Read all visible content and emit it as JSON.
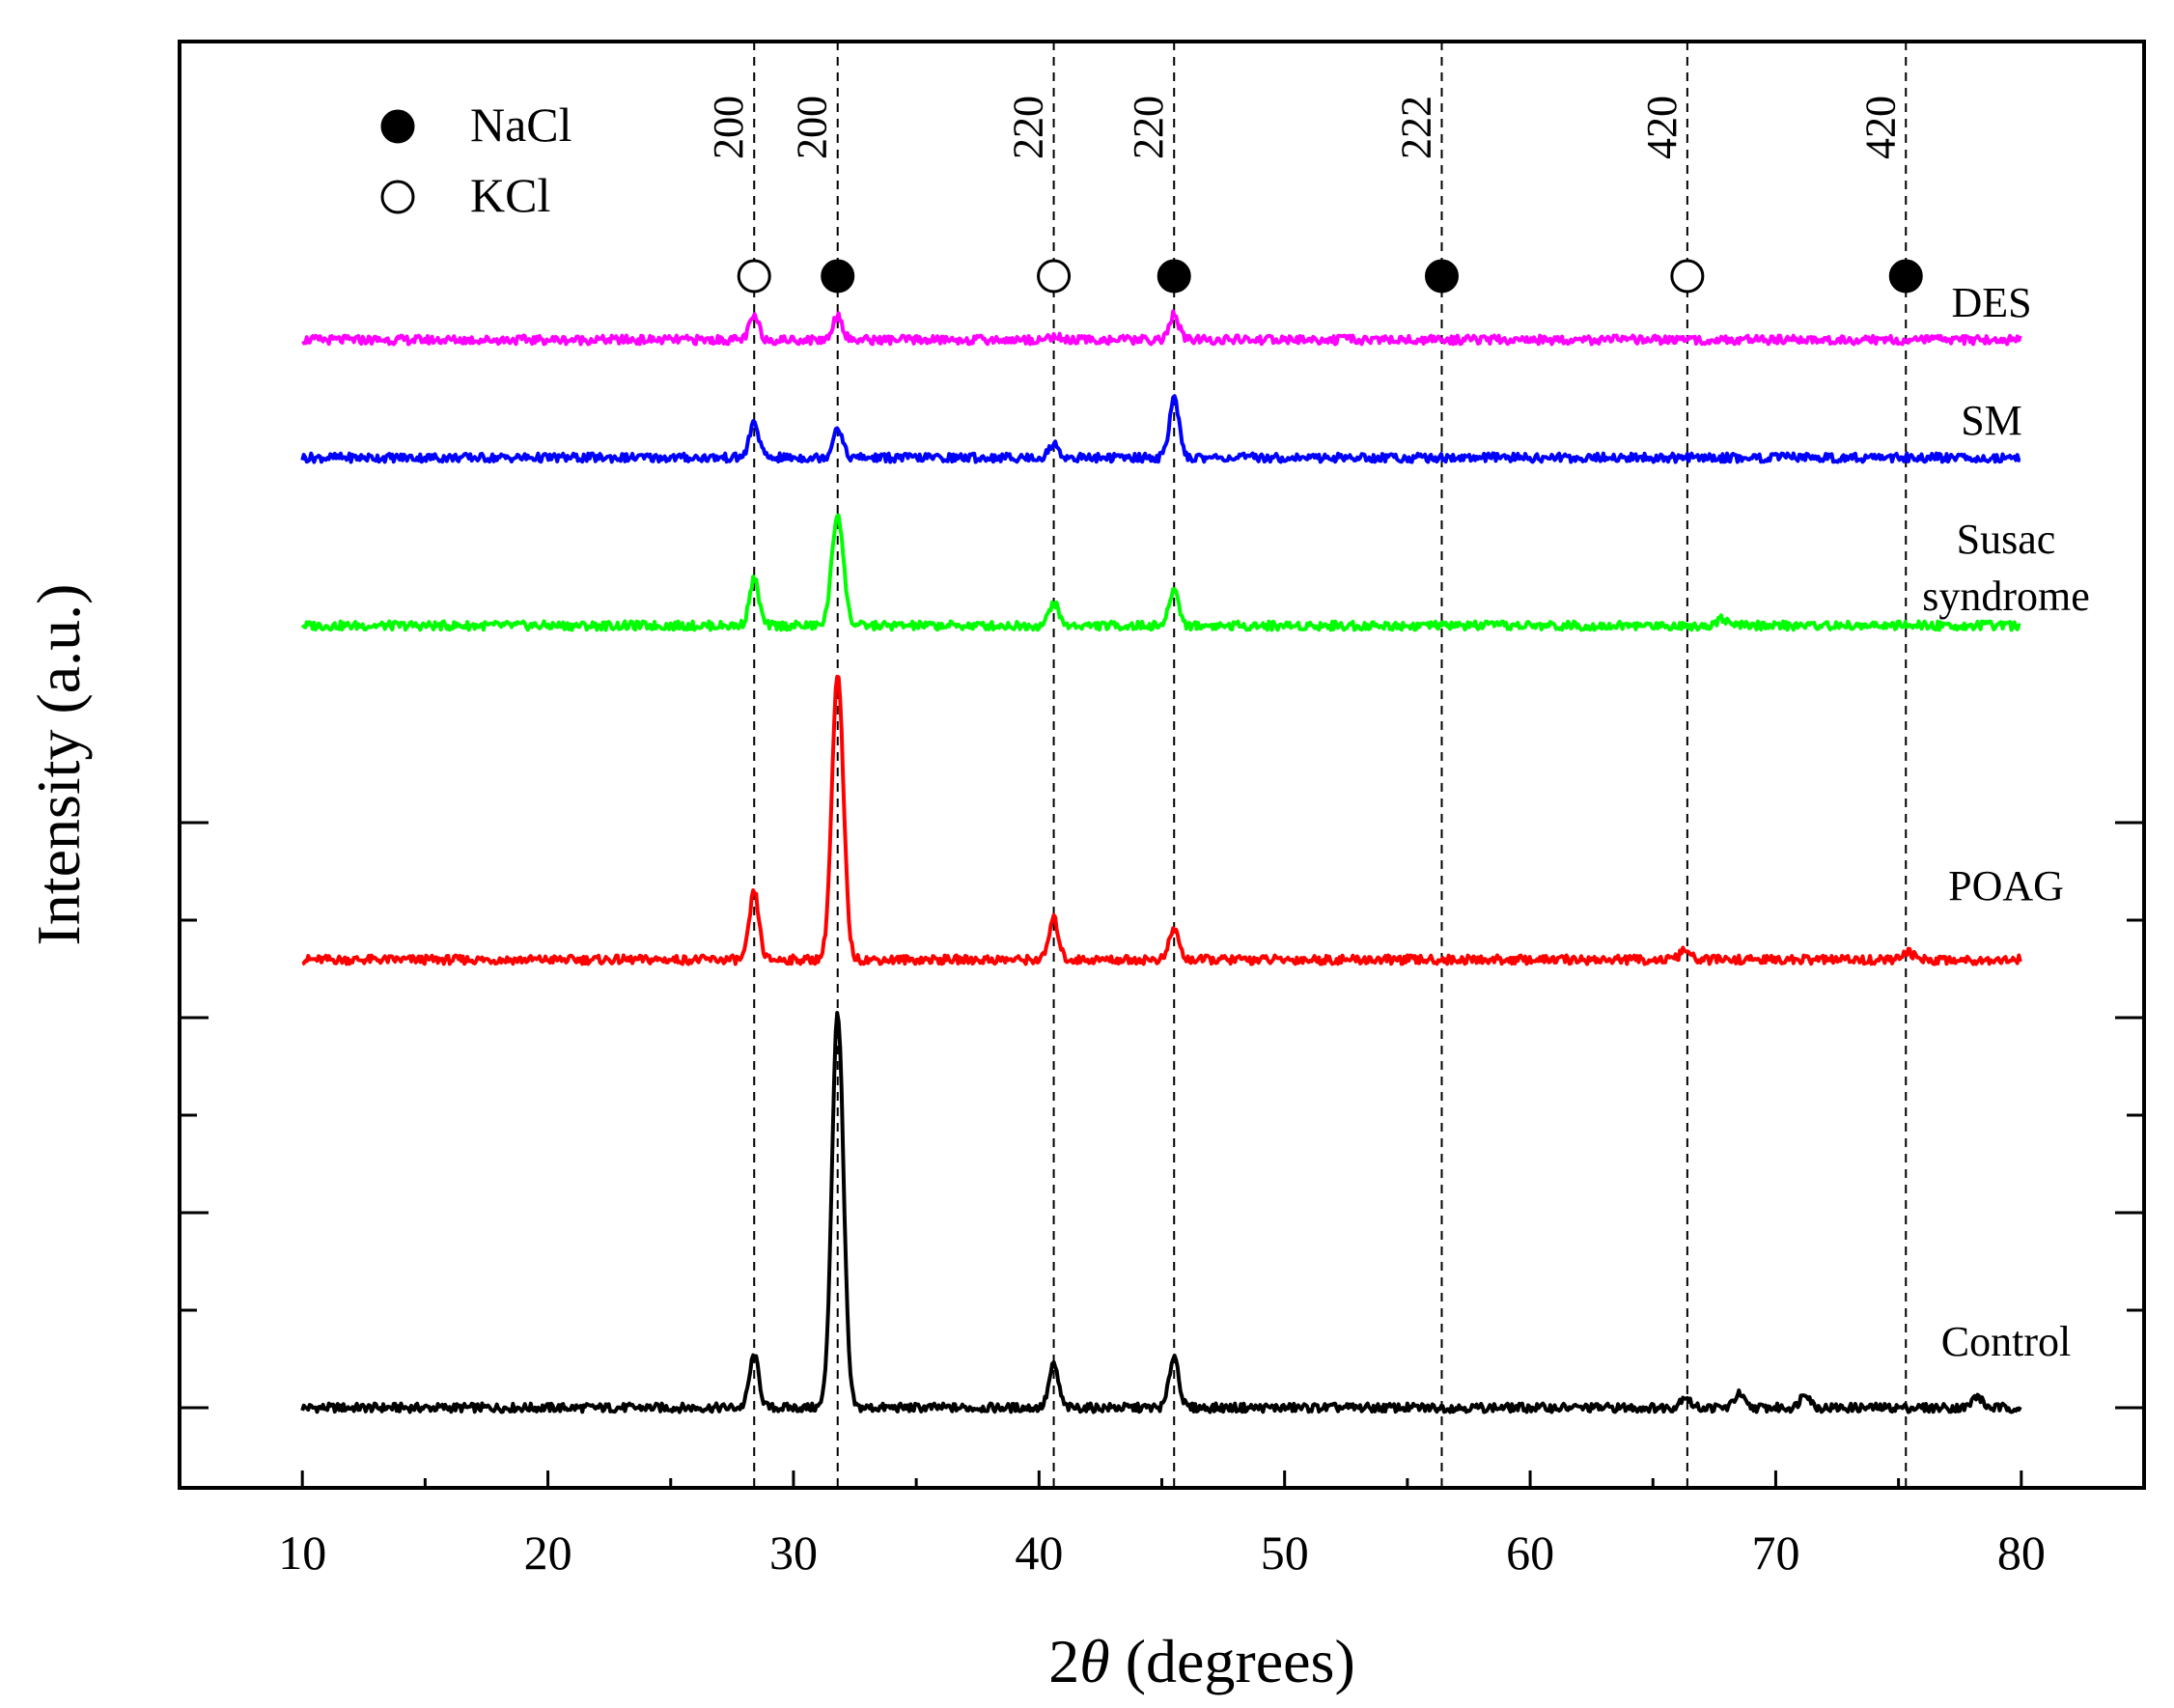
{
  "chart_data": {
    "type": "line",
    "title": "",
    "xlabel_prefix": "2",
    "xlabel_symbol": "θ",
    "xlabel_suffix": " (degrees)",
    "ylabel": "Intensity (a.u.)",
    "xlim": [
      5,
      85
    ],
    "xticks": [
      "10",
      "20",
      "30",
      "40",
      "50",
      "60",
      "70",
      "80"
    ],
    "legend": [
      {
        "label": "NaCl",
        "marker": "filled-circle"
      },
      {
        "label": "KCl",
        "marker": "open-circle"
      }
    ],
    "reference_lines": [
      {
        "x": 28.4,
        "label": "200",
        "phase": "KCl"
      },
      {
        "x": 31.8,
        "label": "200",
        "phase": "NaCl"
      },
      {
        "x": 40.6,
        "label": "220",
        "phase": "KCl"
      },
      {
        "x": 45.5,
        "label": "220",
        "phase": "NaCl"
      },
      {
        "x": 56.4,
        "label": "222",
        "phase": "NaCl"
      },
      {
        "x": 66.4,
        "label": "420",
        "phase": "KCl"
      },
      {
        "x": 75.3,
        "label": "420",
        "phase": "NaCl"
      }
    ],
    "series": [
      {
        "name": "Control",
        "color": "#000000",
        "baseline": 0,
        "peaks": [
          [
            28.4,
            27
          ],
          [
            31.8,
            205
          ],
          [
            40.6,
            22
          ],
          [
            45.5,
            27
          ],
          [
            66.3,
            6
          ],
          [
            68.5,
            7
          ],
          [
            71.2,
            8
          ],
          [
            78.2,
            6
          ]
        ]
      },
      {
        "name": "POAG",
        "color": "#ff0000",
        "baseline": 232,
        "peaks": [
          [
            28.4,
            35
          ],
          [
            31.8,
            147
          ],
          [
            40.6,
            21
          ],
          [
            45.5,
            16
          ],
          [
            66.3,
            5
          ],
          [
            75.4,
            4
          ]
        ]
      },
      {
        "name": "Susac syndrome",
        "color": "#00ff00",
        "baseline": 405,
        "peaks": [
          [
            28.4,
            24
          ],
          [
            31.8,
            58
          ],
          [
            40.6,
            12
          ],
          [
            45.5,
            19
          ],
          [
            67.8,
            4
          ]
        ]
      },
      {
        "name": "SM",
        "color": "#0000ff",
        "baseline": 492,
        "peaks": [
          [
            28.4,
            18
          ],
          [
            31.8,
            16
          ],
          [
            40.6,
            7
          ],
          [
            45.5,
            31
          ]
        ]
      },
      {
        "name": "DES",
        "color": "#ff00ff",
        "baseline": 553,
        "peaks": [
          [
            28.4,
            12
          ],
          [
            31.8,
            13
          ],
          [
            40.6,
            2
          ],
          [
            45.5,
            13
          ]
        ]
      }
    ]
  },
  "series_labels": [
    {
      "name": "DES"
    },
    {
      "name": "SM"
    },
    {
      "name": "Susac",
      "line2": "syndrome"
    },
    {
      "name": "POAG"
    },
    {
      "name": "Control"
    }
  ]
}
